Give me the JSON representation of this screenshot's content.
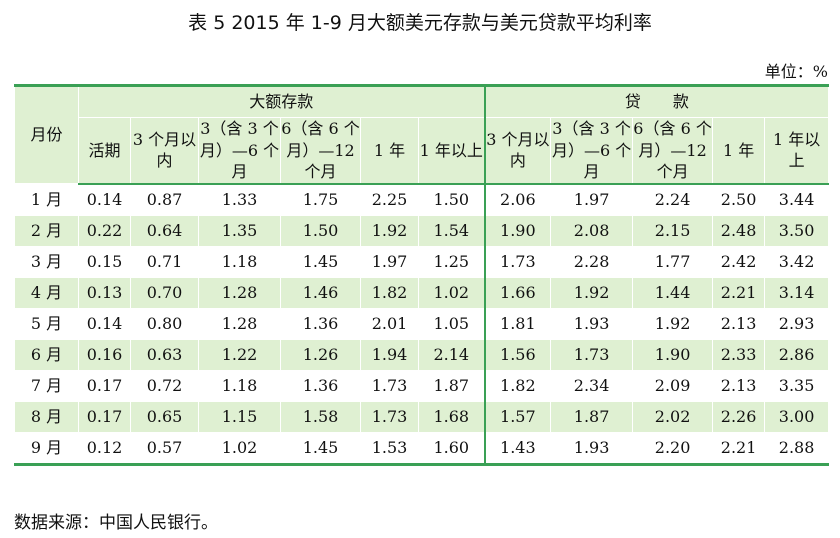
{
  "title": "表 5 2015 年 1-9 月大额美元存款与美元贷款平均利率",
  "unit": "单位：%",
  "table": {
    "month_header": "月份",
    "groups": [
      "大额存款",
      "贷　　款"
    ],
    "columns": [
      "活期",
      "3 个月以内",
      "3（含 3 个月）—6 个月",
      "6（含 6 个月）—12 个月",
      "1 年",
      "1 年以上",
      "3 个月以内",
      "3（含 3 个月）—6 个月",
      "6（含 6 个月）—12 个月",
      "1 年",
      "1 年以上"
    ],
    "rows": [
      [
        "1 月",
        "0.14",
        "0.87",
        "1.33",
        "1.75",
        "2.25",
        "1.50",
        "2.06",
        "1.97",
        "2.24",
        "2.50",
        "3.44"
      ],
      [
        "2 月",
        "0.22",
        "0.64",
        "1.35",
        "1.50",
        "1.92",
        "1.54",
        "1.90",
        "2.08",
        "2.15",
        "2.48",
        "3.50"
      ],
      [
        "3 月",
        "0.15",
        "0.71",
        "1.18",
        "1.45",
        "1.97",
        "1.25",
        "1.73",
        "2.28",
        "1.77",
        "2.42",
        "3.42"
      ],
      [
        "4 月",
        "0.13",
        "0.70",
        "1.28",
        "1.46",
        "1.82",
        "1.02",
        "1.66",
        "1.92",
        "1.44",
        "2.21",
        "3.14"
      ],
      [
        "5 月",
        "0.14",
        "0.80",
        "1.28",
        "1.36",
        "2.01",
        "1.05",
        "1.81",
        "1.93",
        "1.92",
        "2.13",
        "2.93"
      ],
      [
        "6 月",
        "0.16",
        "0.63",
        "1.22",
        "1.26",
        "1.94",
        "2.14",
        "1.56",
        "1.73",
        "1.90",
        "2.33",
        "2.86"
      ],
      [
        "7 月",
        "0.17",
        "0.72",
        "1.18",
        "1.36",
        "1.73",
        "1.87",
        "1.82",
        "2.34",
        "2.09",
        "2.13",
        "3.35"
      ],
      [
        "8 月",
        "0.17",
        "0.65",
        "1.15",
        "1.58",
        "1.73",
        "1.68",
        "1.57",
        "1.87",
        "2.02",
        "2.26",
        "3.00"
      ],
      [
        "9 月",
        "0.12",
        "0.57",
        "1.02",
        "1.45",
        "1.53",
        "1.60",
        "1.43",
        "1.93",
        "2.20",
        "2.21",
        "2.88"
      ]
    ]
  },
  "source": "数据来源：中国人民银行。"
}
